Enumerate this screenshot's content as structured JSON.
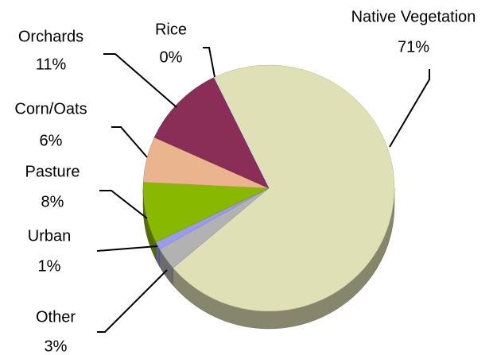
{
  "chart_data": {
    "type": "pie",
    "categories": [
      "Native Vegetation",
      "Other",
      "Urban",
      "Pasture",
      "Corn/Oats",
      "Orchards",
      "Rice"
    ],
    "values": [
      71,
      3,
      1,
      8,
      6,
      11,
      0
    ],
    "value_labels": [
      "71%",
      "3%",
      "1%",
      "8%",
      "6%",
      "11%",
      "0%"
    ],
    "colors": [
      "#e0e0b6",
      "#b2b2b2",
      "#9a9af0",
      "#88b800",
      "#e9b48e",
      "#8a2d57",
      "#4b6fb0"
    ]
  }
}
